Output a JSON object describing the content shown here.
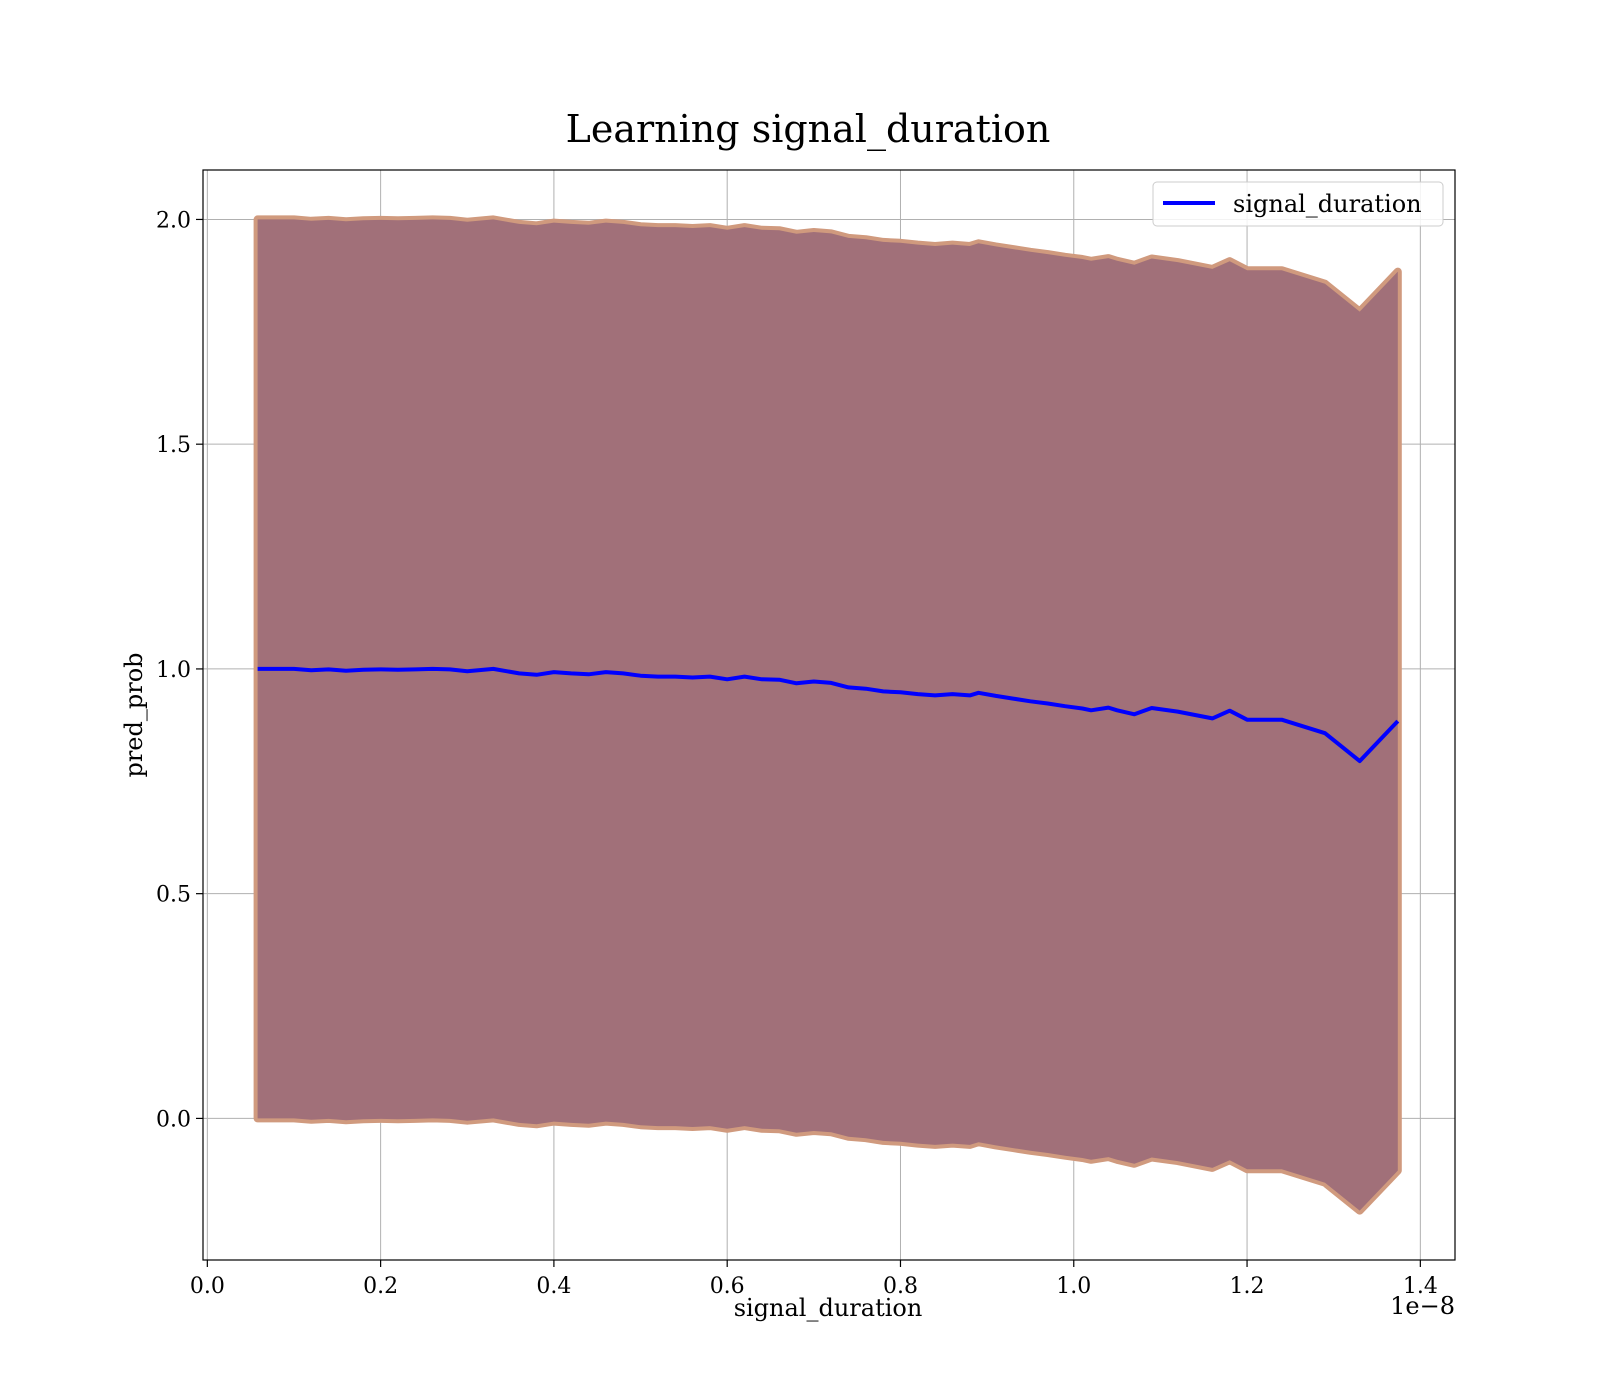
{
  "chart_data": {
    "type": "line",
    "title": "Learning signal_duration",
    "xlabel": "signal_duration",
    "ylabel": "pred_prob",
    "x_offset_label": "1e−8",
    "xlim": [
      -0.005,
      1.44
    ],
    "ylim": [
      -0.315,
      2.11
    ],
    "x_ticks": [
      0.0,
      0.2,
      0.4,
      0.6,
      0.8,
      1.0,
      1.2,
      1.4
    ],
    "x_tick_labels": [
      "0.0",
      "0.2",
      "0.4",
      "0.6",
      "0.8",
      "1.0",
      "1.2",
      "1.4"
    ],
    "y_ticks": [
      0.0,
      0.5,
      1.0,
      1.5,
      2.0
    ],
    "y_tick_labels": [
      "0.0",
      "0.5",
      "1.0",
      "1.5",
      "2.0"
    ],
    "grid": true,
    "legend_position": "top-right",
    "colors": {
      "line": "#0000ff",
      "band_outer": "#d09a7e",
      "band_inner": "#a17079",
      "grid": "#b0b0b0"
    },
    "series": [
      {
        "name": "signal_duration",
        "x": [
          0.058,
          0.08,
          0.1,
          0.12,
          0.14,
          0.16,
          0.18,
          0.2,
          0.22,
          0.24,
          0.26,
          0.28,
          0.3,
          0.33,
          0.36,
          0.38,
          0.4,
          0.42,
          0.44,
          0.46,
          0.48,
          0.5,
          0.52,
          0.54,
          0.56,
          0.58,
          0.6,
          0.62,
          0.64,
          0.66,
          0.68,
          0.7,
          0.72,
          0.74,
          0.76,
          0.78,
          0.8,
          0.82,
          0.84,
          0.86,
          0.88,
          0.89,
          0.91,
          0.93,
          0.95,
          0.97,
          0.99,
          1.01,
          1.02,
          1.04,
          1.05,
          1.07,
          1.09,
          1.12,
          1.16,
          1.18,
          1.2,
          1.24,
          1.29,
          1.33,
          1.374
        ],
        "mean": [
          1.0,
          1.0,
          1.0,
          0.997,
          0.999,
          0.996,
          0.998,
          0.999,
          0.998,
          0.999,
          1.0,
          0.999,
          0.995,
          1.0,
          0.99,
          0.987,
          0.993,
          0.99,
          0.988,
          0.993,
          0.99,
          0.985,
          0.983,
          0.983,
          0.981,
          0.983,
          0.977,
          0.983,
          0.977,
          0.976,
          0.968,
          0.972,
          0.969,
          0.959,
          0.956,
          0.95,
          0.948,
          0.944,
          0.941,
          0.944,
          0.941,
          0.947,
          0.94,
          0.934,
          0.928,
          0.923,
          0.917,
          0.912,
          0.908,
          0.914,
          0.908,
          0.899,
          0.913,
          0.905,
          0.89,
          0.907,
          0.887,
          0.887,
          0.857,
          0.795,
          0.884
        ],
        "upper": [
          2.0,
          2.0,
          2.0,
          1.997,
          1.999,
          1.996,
          1.998,
          1.999,
          1.998,
          1.999,
          2.0,
          1.999,
          1.995,
          2.0,
          1.99,
          1.987,
          1.993,
          1.99,
          1.988,
          1.993,
          1.99,
          1.985,
          1.983,
          1.983,
          1.981,
          1.983,
          1.977,
          1.983,
          1.977,
          1.976,
          1.968,
          1.972,
          1.969,
          1.959,
          1.956,
          1.95,
          1.948,
          1.944,
          1.941,
          1.944,
          1.941,
          1.947,
          1.94,
          1.934,
          1.928,
          1.923,
          1.917,
          1.912,
          1.908,
          1.914,
          1.908,
          1.899,
          1.913,
          1.905,
          1.89,
          1.907,
          1.887,
          1.887,
          1.857,
          1.795,
          1.884
        ],
        "lower": [
          0.0,
          0.0,
          0.0,
          -0.003,
          -0.001,
          -0.004,
          -0.002,
          -0.001,
          -0.002,
          -0.001,
          0.0,
          -0.001,
          -0.005,
          0.0,
          -0.01,
          -0.013,
          -0.007,
          -0.01,
          -0.012,
          -0.007,
          -0.01,
          -0.015,
          -0.017,
          -0.017,
          -0.019,
          -0.017,
          -0.023,
          -0.017,
          -0.023,
          -0.024,
          -0.032,
          -0.028,
          -0.031,
          -0.041,
          -0.044,
          -0.05,
          -0.052,
          -0.056,
          -0.059,
          -0.056,
          -0.059,
          -0.053,
          -0.06,
          -0.066,
          -0.072,
          -0.077,
          -0.083,
          -0.088,
          -0.092,
          -0.086,
          -0.092,
          -0.101,
          -0.087,
          -0.095,
          -0.11,
          -0.093,
          -0.113,
          -0.113,
          -0.143,
          -0.205,
          -0.116
        ]
      }
    ]
  }
}
